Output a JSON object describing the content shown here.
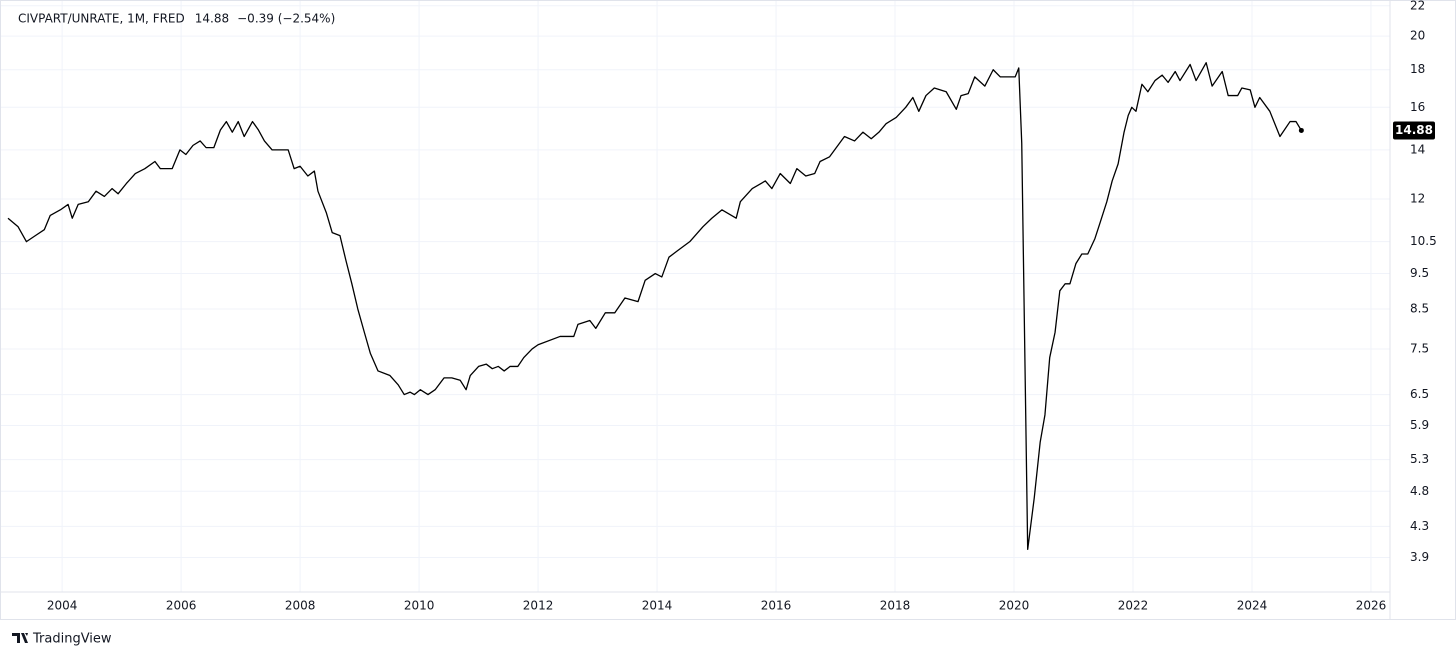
{
  "chart_data": {
    "type": "line",
    "title": "CIVPART/UNRATE, 1M, FRED",
    "change": "−0.39 (−2.54%)",
    "brand": "TradingView",
    "log_scale": true,
    "grid": true,
    "xlim": [
      2003.09,
      2026.32
    ],
    "xticks": [
      2004,
      2006,
      2008,
      2010,
      2012,
      2014,
      2016,
      2018,
      2020,
      2022,
      2024,
      2026
    ],
    "ylim": [
      3.5,
      22.4
    ],
    "yticks": [
      3.9,
      4.3,
      4.8,
      5.3,
      5.9,
      6.5,
      7.5,
      8.5,
      9.5,
      10.5,
      12,
      14,
      16,
      18,
      20,
      22
    ],
    "series": [
      {
        "color": "#000000",
        "x": [
          2003.09,
          2003.26,
          2003.4,
          2003.55,
          2003.7,
          2003.8,
          2003.97,
          2004.1,
          2004.17,
          2004.27,
          2004.44,
          2004.57,
          2004.71,
          2004.84,
          2004.94,
          2005.08,
          2005.23,
          2005.39,
          2005.56,
          2005.65,
          2005.85,
          2005.98,
          2006.08,
          2006.2,
          2006.32,
          2006.42,
          2006.55,
          2006.66,
          2006.76,
          2006.86,
          2006.96,
          2007.06,
          2007.2,
          2007.3,
          2007.4,
          2007.53,
          2007.66,
          2007.8,
          2007.9,
          2008.0,
          2008.13,
          2008.24,
          2008.3,
          2008.44,
          2008.54,
          2008.67,
          2008.77,
          2008.87,
          2008.97,
          2009.08,
          2009.18,
          2009.31,
          2009.51,
          2009.65,
          2009.75,
          2009.85,
          2009.92,
          2010.02,
          2010.15,
          2010.27,
          2010.42,
          2010.55,
          2010.69,
          2010.79,
          2010.86,
          2011.0,
          2011.13,
          2011.23,
          2011.33,
          2011.43,
          2011.53,
          2011.66,
          2011.76,
          2011.9,
          2012.0,
          2012.37,
          2012.6,
          2012.67,
          2012.87,
          2012.97,
          2013.13,
          2013.29,
          2013.46,
          2013.68,
          2013.8,
          2013.97,
          2014.08,
          2014.2,
          2014.34,
          2014.55,
          2014.77,
          2014.92,
          2015.09,
          2015.33,
          2015.4,
          2015.6,
          2015.82,
          2015.93,
          2016.07,
          2016.24,
          2016.35,
          2016.5,
          2016.65,
          2016.74,
          2016.9,
          2017.15,
          2017.32,
          2017.46,
          2017.6,
          2017.73,
          2017.85,
          2018.02,
          2018.18,
          2018.3,
          2018.4,
          2018.52,
          2018.66,
          2018.86,
          2019.03,
          2019.11,
          2019.23,
          2019.34,
          2019.51,
          2019.65,
          2019.77,
          2020.02,
          2020.08,
          2020.13,
          2020.23,
          2020.34,
          2020.44,
          2020.52,
          2020.6,
          2020.69,
          2020.77,
          2020.86,
          2020.94,
          2021.04,
          2021.14,
          2021.24,
          2021.36,
          2021.44,
          2021.56,
          2021.65,
          2021.75,
          2021.85,
          2021.92,
          2021.98,
          2022.05,
          2022.15,
          2022.25,
          2022.37,
          2022.49,
          2022.59,
          2022.71,
          2022.79,
          2022.96,
          2023.06,
          2023.23,
          2023.33,
          2023.5,
          2023.6,
          2023.76,
          2023.83,
          2023.97,
          2024.05,
          2024.13,
          2024.3,
          2024.47,
          2024.64,
          2024.74,
          2024.83
        ],
        "values": [
          11.3,
          11.0,
          10.5,
          10.7,
          10.9,
          11.4,
          11.6,
          11.8,
          11.3,
          11.8,
          11.9,
          12.3,
          12.1,
          12.4,
          12.2,
          12.6,
          13.0,
          13.2,
          13.5,
          13.2,
          13.2,
          14.0,
          13.8,
          14.2,
          14.4,
          14.1,
          14.1,
          14.9,
          15.3,
          14.8,
          15.3,
          14.6,
          15.3,
          14.9,
          14.4,
          14.0,
          14.0,
          14.0,
          13.2,
          13.3,
          12.9,
          13.1,
          12.3,
          11.5,
          10.8,
          10.7,
          9.9,
          9.2,
          8.5,
          7.9,
          7.4,
          7.0,
          6.9,
          6.7,
          6.5,
          6.55,
          6.5,
          6.6,
          6.5,
          6.6,
          6.85,
          6.85,
          6.8,
          6.6,
          6.9,
          7.1,
          7.15,
          7.05,
          7.1,
          7.0,
          7.1,
          7.1,
          7.3,
          7.5,
          7.6,
          7.8,
          7.8,
          8.1,
          8.2,
          8.0,
          8.4,
          8.4,
          8.8,
          8.7,
          9.3,
          9.5,
          9.4,
          10.0,
          10.2,
          10.5,
          11.0,
          11.3,
          11.6,
          11.3,
          11.9,
          12.4,
          12.7,
          12.4,
          13.0,
          12.6,
          13.2,
          12.9,
          13.0,
          13.5,
          13.7,
          14.6,
          14.4,
          14.8,
          14.5,
          14.8,
          15.2,
          15.5,
          16.0,
          16.5,
          15.8,
          16.6,
          17.0,
          16.8,
          15.9,
          16.6,
          16.7,
          17.6,
          17.1,
          18.0,
          17.6,
          17.6,
          18.1,
          14.3,
          4.0,
          4.7,
          5.6,
          6.1,
          7.3,
          7.9,
          9.0,
          9.2,
          9.2,
          9.8,
          10.1,
          10.1,
          10.6,
          11.1,
          11.9,
          12.7,
          13.4,
          14.8,
          15.6,
          16.0,
          15.8,
          17.2,
          16.8,
          17.4,
          17.7,
          17.3,
          17.9,
          17.4,
          18.3,
          17.4,
          18.4,
          17.1,
          17.9,
          16.6,
          16.6,
          17.0,
          16.9,
          16.0,
          16.5,
          15.8,
          14.6,
          15.3,
          15.3,
          14.88
        ]
      }
    ]
  }
}
